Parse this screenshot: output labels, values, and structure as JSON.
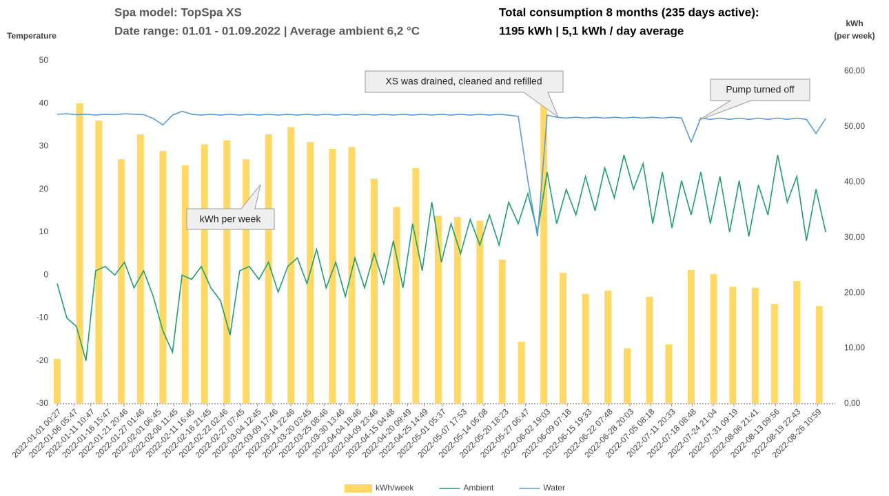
{
  "chart_data": {
    "type": "combo",
    "title": "Spa model: TopSpa XS",
    "subtitle": "Date range: 01.01 - 01.09.2022 | Average ambient 6,2 °C",
    "summary": [
      "Total consumption 8 months (235 days active):",
      "1195 kWh | 5,1 kWh / day average"
    ],
    "y_label": "Temperature",
    "y2_label": [
      "kWh",
      "(per week)"
    ],
    "annotations": [
      "XS was drained, cleaned and refilled",
      "Pump turned off",
      "kWh per week"
    ],
    "xlim": [
      "2022-01-01 00:00",
      "2022-09-01 00:00"
    ],
    "xticks": [
      "2022-01-01 00:27",
      "2022-01-06 05:47",
      "2022-01-11 10:47",
      "2022-01-16 15:47",
      "2022-01-21 20:46",
      "2022-01-27 01:46",
      "2022-02-01 06:45",
      "2022-02-06 11:45",
      "2022-02-11 16:45",
      "2022-02-16 21:45",
      "2022-02-22 02:46",
      "2022-02-27 07:45",
      "2022-03-04 12:45",
      "2022-03-09 17:46",
      "2022-03-14 22:46",
      "2022-03-20 03:45",
      "2022-03-25 08:46",
      "2022-03-30 13:46",
      "2022-04-04 18:46",
      "2022-04-09 23:46",
      "2022-04-15 04:48",
      "2022-04-20 09:49",
      "2022-04-25 14:49",
      "2022-05-01 05:37",
      "2022-05-07 17:53",
      "2022-05-14 06:08",
      "2022-05-20 18:23",
      "2022-05-27 06:47",
      "2022-06-02 19:03",
      "2022-06-09 07:18",
      "2022-06-15 19:33",
      "2022-06-22 07:48",
      "2022-06-28 20:03",
      "2022-07-05 08:18",
      "2022-07-11 20:33",
      "2022-07-18 08:48",
      "2022-07-24 21:04",
      "2022-07-31 09:19",
      "2022-08-06 21:41",
      "2022-08-13 09:56",
      "2022-08-19 22:43",
      "2022-08-26 10:59"
    ],
    "ylim": [
      -30,
      50
    ],
    "yticks": [
      -30,
      -20,
      -10,
      0,
      10,
      20,
      30,
      40,
      50
    ],
    "y2lim": [
      0,
      61.9
    ],
    "y2ticks": [
      {
        "value": 0,
        "label": "0,00"
      },
      {
        "value": 10,
        "label": "10,00"
      },
      {
        "value": 20,
        "label": "20,00"
      },
      {
        "value": 30,
        "label": "30,00"
      },
      {
        "value": 40,
        "label": "40,00"
      },
      {
        "value": 50,
        "label": "50,00"
      },
      {
        "value": 60,
        "label": "60,00"
      }
    ],
    "legend": "bottom",
    "x": [
      "2022-01-01",
      "2022-01-04",
      "2022-01-07",
      "2022-01-10",
      "2022-01-13",
      "2022-01-16",
      "2022-01-19",
      "2022-01-22",
      "2022-01-25",
      "2022-01-28",
      "2022-01-31",
      "2022-02-03",
      "2022-02-06",
      "2022-02-09",
      "2022-02-12",
      "2022-02-15",
      "2022-02-18",
      "2022-02-21",
      "2022-02-24",
      "2022-02-27",
      "2022-03-02",
      "2022-03-05",
      "2022-03-08",
      "2022-03-11",
      "2022-03-14",
      "2022-03-17",
      "2022-03-20",
      "2022-03-23",
      "2022-03-26",
      "2022-03-29",
      "2022-04-01",
      "2022-04-04",
      "2022-04-07",
      "2022-04-10",
      "2022-04-13",
      "2022-04-16",
      "2022-04-19",
      "2022-04-22",
      "2022-04-25",
      "2022-04-28",
      "2022-05-01",
      "2022-05-04",
      "2022-05-07",
      "2022-05-10",
      "2022-05-13",
      "2022-05-16",
      "2022-05-19",
      "2022-05-22",
      "2022-05-25",
      "2022-05-28",
      "2022-05-31",
      "2022-06-03",
      "2022-06-06",
      "2022-06-09",
      "2022-06-12",
      "2022-06-15",
      "2022-06-18",
      "2022-06-21",
      "2022-06-24",
      "2022-06-27",
      "2022-06-30",
      "2022-07-03",
      "2022-07-06",
      "2022-07-09",
      "2022-07-12",
      "2022-07-15",
      "2022-07-18",
      "2022-07-21",
      "2022-07-24",
      "2022-07-27",
      "2022-07-30",
      "2022-08-02",
      "2022-08-05",
      "2022-08-08",
      "2022-08-11",
      "2022-08-14",
      "2022-08-17",
      "2022-08-20",
      "2022-08-23",
      "2022-08-26",
      "2022-08-29"
    ],
    "series": [
      {
        "name": "kWh/week",
        "type": "bar",
        "axis": "y2",
        "color": "#ffd966",
        "x": [
          "2022-01-01",
          "2022-01-08",
          "2022-01-14",
          "2022-01-21",
          "2022-01-27",
          "2022-02-03",
          "2022-02-10",
          "2022-02-16",
          "2022-02-23",
          "2022-03-01",
          "2022-03-08",
          "2022-03-15",
          "2022-03-21",
          "2022-03-28",
          "2022-04-03",
          "2022-04-10",
          "2022-04-17",
          "2022-04-23",
          "2022-04-30",
          "2022-05-06",
          "2022-05-13",
          "2022-05-20",
          "2022-05-26",
          "2022-06-02",
          "2022-06-08",
          "2022-06-15",
          "2022-06-22",
          "2022-06-28",
          "2022-07-05",
          "2022-07-11",
          "2022-07-18",
          "2022-07-25",
          "2022-07-31",
          "2022-08-07",
          "2022-08-13",
          "2022-08-20",
          "2022-08-27"
        ],
        "values": [
          8.1,
          54.2,
          51.1,
          44.1,
          48.6,
          45.6,
          43.0,
          46.8,
          47.5,
          44.1,
          48.6,
          49.9,
          47.2,
          46.0,
          46.3,
          40.6,
          35.5,
          42.5,
          33.9,
          33.7,
          33,
          26,
          11.2,
          60,
          23.6,
          19.8,
          20.4,
          10,
          19.3,
          10.7,
          24.1,
          23.4,
          21.1,
          20.9,
          18,
          22.1,
          17.6
        ]
      },
      {
        "name": "Ambient",
        "type": "line",
        "color": "#1f9e6f",
        "values": [
          -2,
          -10,
          -12,
          -20,
          1,
          2,
          0,
          3,
          -3,
          1,
          -5,
          -13,
          -18,
          0,
          -1,
          2,
          -3,
          -6,
          -14,
          1,
          2,
          -1,
          3,
          -4,
          2,
          4,
          -2,
          6,
          -3,
          3,
          -5,
          4,
          -3,
          5,
          -2,
          8,
          -3,
          12,
          1,
          17,
          3,
          12,
          5,
          13,
          7,
          14,
          7,
          17,
          12,
          19,
          10,
          24,
          12,
          20,
          14,
          23,
          15,
          25,
          18,
          28,
          20,
          26,
          12,
          24,
          11,
          22,
          14,
          24,
          12,
          23,
          10,
          22,
          9,
          21,
          14,
          28,
          17,
          23,
          8,
          20,
          10
        ]
      },
      {
        "name": "Water",
        "type": "line",
        "color": "#5b9bd5",
        "values": [
          37.5,
          37.6,
          37.4,
          37.5,
          37.3,
          37.5,
          37.4,
          37.6,
          37.5,
          37.4,
          36.5,
          35,
          37.3,
          38.2,
          37.5,
          37.3,
          37.5,
          37.3,
          37.5,
          37.3,
          37.5,
          37.3,
          37.5,
          37.3,
          37.5,
          37.3,
          37.5,
          37.3,
          37.5,
          37.3,
          37.5,
          37.3,
          37.5,
          37.3,
          37.5,
          37.3,
          37.5,
          37.3,
          37.5,
          37.3,
          37.5,
          37.3,
          37.5,
          37.3,
          37.5,
          37.3,
          37.5,
          37.3,
          37,
          22,
          9,
          37.3,
          36.8,
          36.6,
          36.8,
          36.6,
          36.8,
          36.6,
          36.8,
          36.6,
          36.8,
          36.6,
          36.8,
          36.6,
          36.8,
          36.6,
          31,
          36.6,
          36.3,
          36.6,
          36.3,
          36.6,
          36.3,
          36.6,
          36.3,
          36.6,
          36.3,
          36.6,
          36.3,
          33,
          36.5
        ]
      }
    ]
  }
}
